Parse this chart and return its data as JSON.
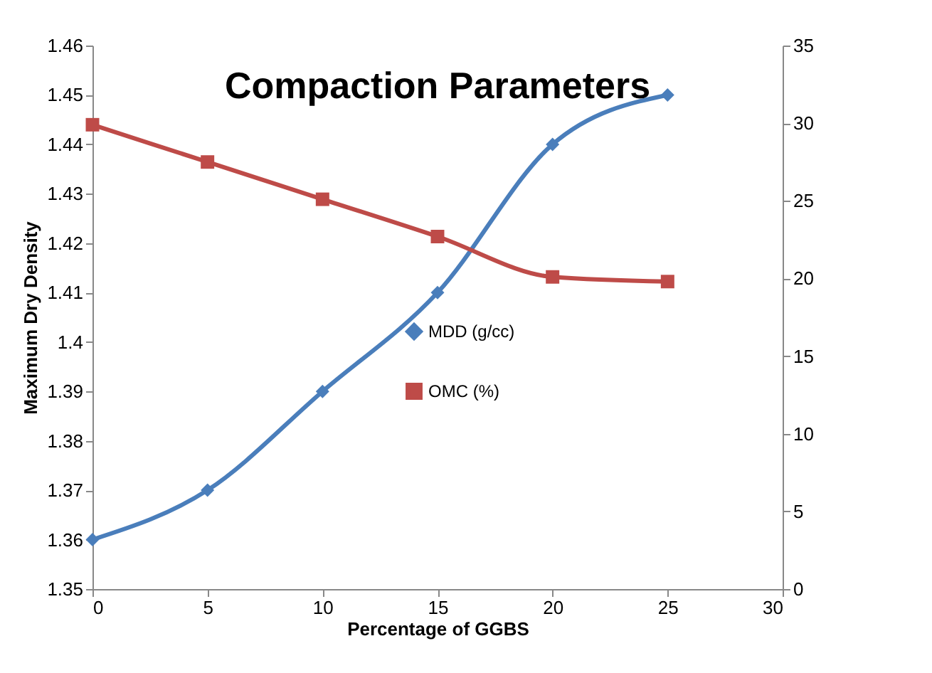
{
  "chart_data": {
    "type": "line",
    "title": "Compaction Parameters",
    "xlabel": "Percentage of GGBS",
    "ylabel": "Maximum Dry Density",
    "x": [
      0,
      5,
      10,
      15,
      20,
      25
    ],
    "series": [
      {
        "name": "MDD (g/cc)",
        "color": "#4a7ebb",
        "marker": "diamond",
        "values": [
          1.36,
          1.37,
          1.39,
          1.41,
          1.44,
          1.45
        ]
      },
      {
        "name": "OMC (%)",
        "color": "#be4b48",
        "marker": "square",
        "axis": "y2",
        "values": [
          29.9,
          27.5,
          25.1,
          22.7,
          20.1,
          19.8
        ]
      }
    ],
    "xlim": [
      0,
      30
    ],
    "xticks": [
      0,
      5,
      10,
      15,
      20,
      25,
      30
    ],
    "ylim": [
      1.35,
      1.46
    ],
    "yticks": [
      1.35,
      1.36,
      1.37,
      1.38,
      1.39,
      1.4,
      1.41,
      1.42,
      1.43,
      1.44,
      1.45,
      1.46
    ],
    "y2lim": [
      0,
      35
    ],
    "y2ticks": [
      0,
      5,
      10,
      15,
      20,
      25,
      30,
      35
    ],
    "grid": false,
    "legend": "right",
    "line_style": "solid"
  }
}
